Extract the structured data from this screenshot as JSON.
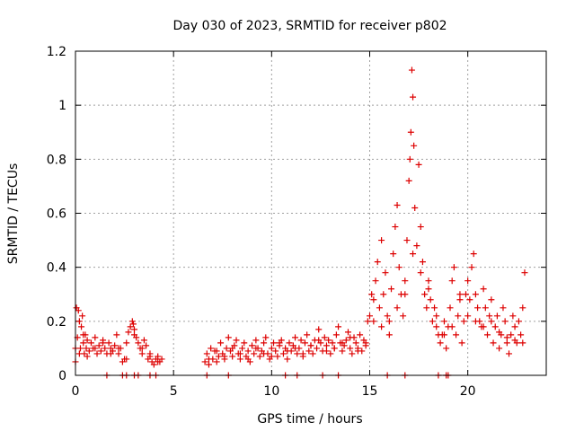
{
  "chart_data": {
    "type": "scatter",
    "title": "Day 030 of 2023, SRMTID for receiver p802",
    "xlabel": "GPS time / hours",
    "ylabel": "SRMTID / TECUs",
    "xlim": [
      0,
      24
    ],
    "ylim": [
      0,
      1.2
    ],
    "xticks": [
      0,
      5,
      10,
      15,
      20
    ],
    "xtick_labels": [
      "0",
      "5",
      "10",
      "15",
      "20"
    ],
    "yticks": [
      0,
      0.2,
      0.4,
      0.6,
      0.8,
      1,
      1.2
    ],
    "ytick_labels": [
      "0",
      "0.2",
      "0.4",
      "0.6",
      "0.8",
      "1",
      "1.2"
    ],
    "grid": true,
    "marker": "+",
    "color": "#dd0000",
    "series": [
      {
        "name": "SRMTID",
        "x": [
          0.0,
          0.05,
          0.1,
          0.15,
          0.2,
          0.25,
          0.3,
          0.35,
          0.4,
          0.45,
          0.5,
          0.55,
          0.6,
          0.7,
          0.8,
          0.9,
          1.0,
          1.1,
          1.2,
          1.3,
          1.4,
          1.5,
          1.6,
          1.7,
          1.8,
          1.9,
          2.0,
          2.1,
          2.2,
          2.3,
          2.4,
          2.5,
          2.6,
          2.7,
          2.8,
          2.9,
          2.95,
          3.0,
          3.1,
          3.2,
          3.3,
          3.4,
          3.5,
          3.6,
          3.7,
          3.8,
          3.9,
          4.0,
          4.1,
          4.2,
          4.3,
          4.4,
          6.6,
          6.7,
          6.8,
          6.9,
          7.0,
          7.1,
          7.2,
          7.3,
          7.4,
          7.5,
          7.6,
          7.7,
          7.8,
          7.9,
          8.0,
          8.1,
          8.2,
          8.3,
          8.4,
          8.5,
          8.6,
          8.7,
          8.8,
          8.9,
          9.0,
          9.1,
          9.2,
          9.3,
          9.4,
          9.5,
          9.6,
          9.7,
          9.8,
          9.9,
          10.0,
          10.1,
          10.2,
          10.3,
          10.4,
          10.5,
          10.6,
          10.7,
          10.8,
          10.9,
          11.0,
          11.1,
          11.2,
          11.3,
          11.4,
          11.5,
          11.6,
          11.7,
          11.8,
          11.9,
          12.0,
          12.1,
          12.2,
          12.3,
          12.4,
          12.5,
          12.6,
          12.7,
          12.8,
          12.9,
          13.0,
          13.1,
          13.2,
          13.3,
          13.4,
          13.5,
          13.6,
          13.7,
          13.8,
          13.9,
          14.0,
          14.1,
          14.2,
          14.3,
          14.4,
          14.5,
          14.6,
          14.7,
          14.8,
          14.9,
          15.0,
          15.1,
          15.2,
          15.3,
          15.4,
          15.5,
          15.6,
          15.7,
          15.8,
          15.9,
          16.0,
          16.1,
          16.2,
          16.3,
          16.4,
          16.5,
          16.6,
          16.7,
          16.8,
          16.9,
          17.0,
          17.05,
          17.1,
          17.15,
          17.2,
          17.25,
          17.3,
          17.4,
          17.5,
          17.6,
          17.7,
          17.8,
          17.9,
          18.0,
          18.1,
          18.2,
          18.3,
          18.4,
          18.5,
          18.6,
          18.7,
          18.8,
          18.9,
          19.0,
          19.1,
          19.2,
          19.3,
          19.4,
          19.5,
          19.6,
          19.7,
          19.8,
          19.9,
          20.0,
          20.1,
          20.2,
          20.3,
          20.4,
          20.5,
          20.6,
          20.7,
          20.8,
          20.9,
          21.0,
          21.1,
          21.2,
          21.3,
          21.4,
          21.5,
          21.6,
          21.7,
          21.8,
          21.9,
          22.0,
          22.1,
          22.2,
          22.3,
          22.4,
          22.5,
          22.6,
          22.7,
          22.8,
          22.9,
          0.0,
          0.2,
          0.4,
          0.6,
          1.0,
          1.4,
          1.8,
          2.2,
          2.6,
          3.0,
          3.4,
          3.8,
          4.2,
          6.8,
          7.2,
          7.6,
          8.0,
          8.4,
          8.8,
          9.2,
          9.6,
          10.0,
          10.4,
          10.8,
          11.2,
          11.6,
          12.0,
          12.4,
          12.8,
          13.2,
          13.6,
          14.0,
          14.4,
          14.8,
          15.2,
          15.6,
          16.0,
          16.4,
          16.8,
          17.2,
          17.6,
          18.0,
          18.4,
          18.8,
          19.2,
          19.6,
          20.0,
          20.4,
          20.8,
          21.2,
          21.6,
          22.0,
          22.4,
          22.8,
          1.6,
          2.4,
          2.6,
          3.0,
          3.2,
          3.8,
          4.1,
          6.7,
          7.8,
          10.7,
          11.3,
          12.6,
          13.4,
          15.9,
          16.8,
          18.5,
          18.9,
          19.0
        ],
        "y": [
          0.05,
          0.25,
          0.14,
          0.24,
          0.2,
          0.1,
          0.18,
          0.22,
          0.12,
          0.08,
          0.15,
          0.1,
          0.13,
          0.09,
          0.12,
          0.1,
          0.14,
          0.08,
          0.11,
          0.09,
          0.13,
          0.1,
          0.08,
          0.12,
          0.1,
          0.09,
          0.11,
          0.15,
          0.08,
          0.1,
          0.05,
          0.06,
          0.12,
          0.16,
          0.18,
          0.2,
          0.19,
          0.17,
          0.14,
          0.12,
          0.1,
          0.08,
          0.13,
          0.11,
          0.06,
          0.08,
          0.05,
          0.04,
          0.06,
          0.07,
          0.05,
          0.06,
          0.05,
          0.08,
          0.04,
          0.1,
          0.06,
          0.09,
          0.05,
          0.07,
          0.12,
          0.08,
          0.06,
          0.1,
          0.14,
          0.09,
          0.07,
          0.11,
          0.13,
          0.08,
          0.06,
          0.1,
          0.12,
          0.07,
          0.09,
          0.05,
          0.11,
          0.08,
          0.13,
          0.1,
          0.07,
          0.09,
          0.12,
          0.14,
          0.08,
          0.06,
          0.1,
          0.12,
          0.09,
          0.07,
          0.11,
          0.13,
          0.08,
          0.1,
          0.06,
          0.12,
          0.09,
          0.11,
          0.14,
          0.08,
          0.1,
          0.13,
          0.07,
          0.12,
          0.15,
          0.09,
          0.11,
          0.08,
          0.13,
          0.1,
          0.17,
          0.12,
          0.09,
          0.14,
          0.11,
          0.13,
          0.08,
          0.12,
          0.1,
          0.15,
          0.18,
          0.12,
          0.09,
          0.11,
          0.13,
          0.16,
          0.1,
          0.08,
          0.14,
          0.12,
          0.1,
          0.15,
          0.09,
          0.13,
          0.11,
          0.2,
          0.22,
          0.3,
          0.28,
          0.35,
          0.42,
          0.25,
          0.5,
          0.3,
          0.38,
          0.22,
          0.2,
          0.32,
          0.45,
          0.55,
          0.63,
          0.4,
          0.3,
          0.22,
          0.35,
          0.5,
          0.72,
          0.8,
          0.9,
          1.13,
          1.03,
          0.85,
          0.62,
          0.48,
          0.78,
          0.55,
          0.42,
          0.3,
          0.25,
          0.35,
          0.28,
          0.2,
          0.25,
          0.18,
          0.15,
          0.12,
          0.15,
          0.2,
          0.1,
          0.18,
          0.25,
          0.35,
          0.4,
          0.15,
          0.22,
          0.3,
          0.12,
          0.2,
          0.3,
          0.35,
          0.28,
          0.4,
          0.45,
          0.3,
          0.25,
          0.2,
          0.18,
          0.32,
          0.25,
          0.15,
          0.22,
          0.28,
          0.12,
          0.18,
          0.22,
          0.1,
          0.15,
          0.25,
          0.2,
          0.12,
          0.08,
          0.15,
          0.22,
          0.18,
          0.12,
          0.2,
          0.15,
          0.25,
          0.38,
          0.1,
          0.08,
          0.15,
          0.07,
          0.1,
          0.12,
          0.08,
          0.1,
          0.06,
          0.15,
          0.1,
          0.07,
          0.05,
          0.06,
          0.09,
          0.07,
          0.1,
          0.08,
          0.06,
          0.1,
          0.08,
          0.07,
          0.12,
          0.09,
          0.1,
          0.08,
          0.11,
          0.13,
          0.09,
          0.1,
          0.12,
          0.14,
          0.09,
          0.12,
          0.2,
          0.18,
          0.15,
          0.25,
          0.3,
          0.45,
          0.38,
          0.32,
          0.22,
          0.15,
          0.18,
          0.28,
          0.22,
          0.2,
          0.18,
          0.2,
          0.16,
          0.14,
          0.13,
          0.12,
          0.0,
          0.0,
          0.0,
          0.0,
          0.0,
          0.0,
          0.0,
          0.0,
          0.0,
          0.0,
          0.0,
          0.0,
          0.0,
          0.0,
          0.0,
          0.0,
          0.0,
          0.0
        ]
      }
    ]
  }
}
